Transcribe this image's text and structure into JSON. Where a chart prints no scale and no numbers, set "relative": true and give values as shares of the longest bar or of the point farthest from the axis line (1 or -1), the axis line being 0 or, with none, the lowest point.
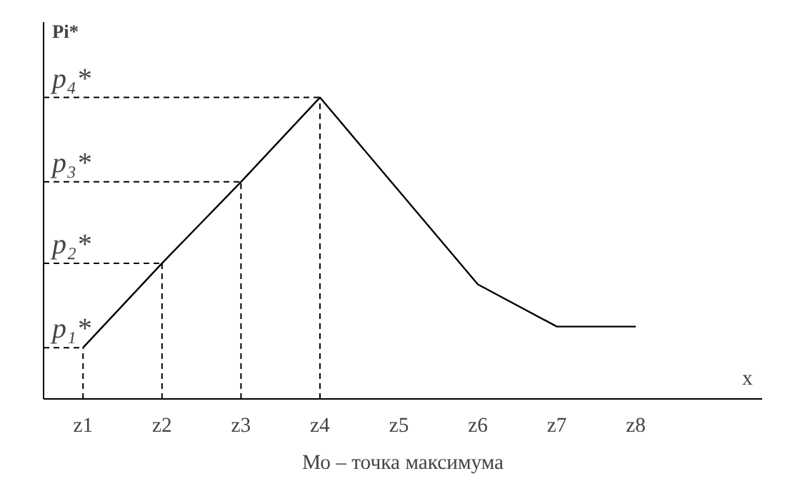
{
  "chart_data": {
    "type": "line",
    "relative": true,
    "xlabel": "x",
    "ylabel": "Pi*",
    "categories": [
      "z1",
      "z2",
      "z3",
      "z4",
      "z5",
      "z6",
      "z7",
      "z8"
    ],
    "series": [
      {
        "color": "#000000",
        "values": [
          0.17,
          0.45,
          0.72,
          1,
          0.69,
          0.38,
          0.24,
          0.24
        ]
      }
    ],
    "ref_lines": [
      {
        "axis": "y",
        "value": 0.17,
        "label": "p₁*",
        "line_style": "dashed"
      },
      {
        "axis": "y",
        "value": 0.45,
        "label": "p₂*",
        "line_style": "dashed"
      },
      {
        "axis": "y",
        "value": 0.72,
        "label": "p₃*",
        "line_style": "dashed"
      },
      {
        "axis": "y",
        "value": 1,
        "label": "p₄*",
        "line_style": "dashed"
      },
      {
        "axis": "x",
        "value": "z1",
        "line_style": "dashed"
      },
      {
        "axis": "x",
        "value": "z2",
        "line_style": "dashed"
      },
      {
        "axis": "x",
        "value": "z3",
        "line_style": "dashed"
      },
      {
        "axis": "x",
        "value": "z4",
        "line_style": "dashed"
      }
    ],
    "annotations": [
      "Мо – точка максимума"
    ],
    "grid": false,
    "marker": "none",
    "line_style": "solid"
  }
}
